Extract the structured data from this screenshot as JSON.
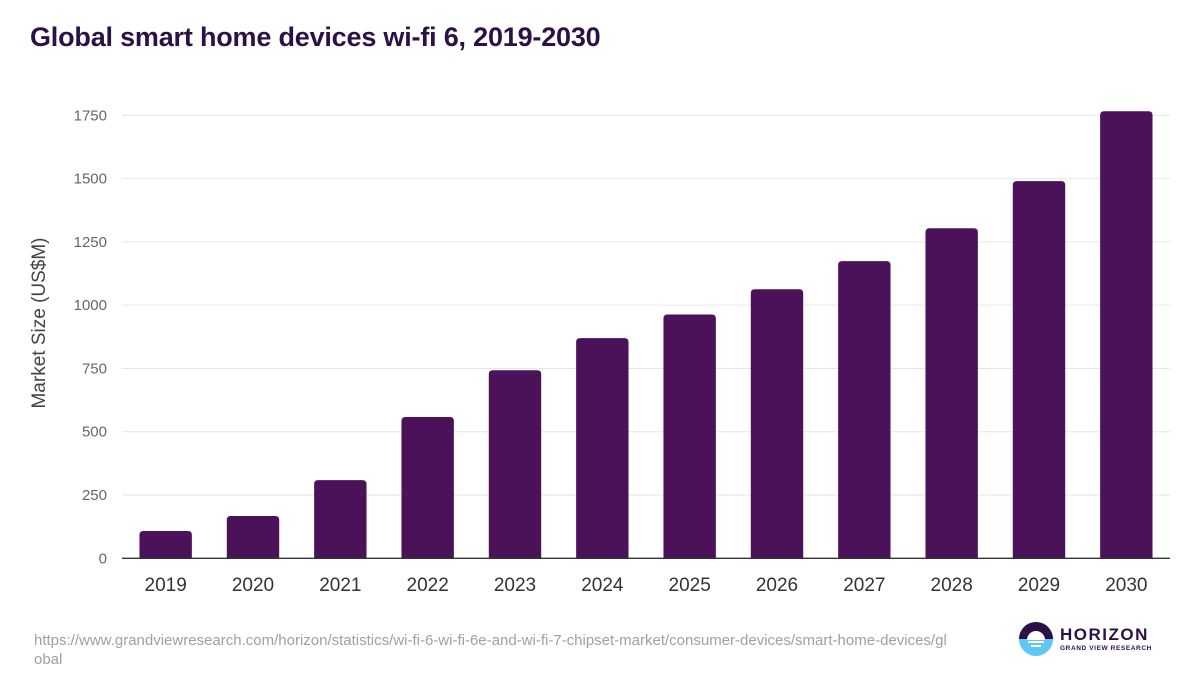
{
  "header": {
    "title": "Global smart home devices wi-fi 6, 2019-2030"
  },
  "colors": {
    "bar": "#4b1259",
    "title": "#2d1045",
    "grid": "#e6e6e6",
    "axis": "#333333",
    "logo_dark": "#2d1045",
    "logo_light": "#5ec8f2"
  },
  "chart_data": {
    "type": "bar",
    "title": "Global smart home devices wi-fi 6, 2019-2030",
    "xlabel": "",
    "ylabel": "Market Size (US$M)",
    "categories": [
      "2019",
      "2020",
      "2021",
      "2022",
      "2023",
      "2024",
      "2025",
      "2026",
      "2027",
      "2028",
      "2029",
      "2030"
    ],
    "values": [
      108,
      167,
      309,
      558,
      743,
      870,
      963,
      1063,
      1174,
      1304,
      1490,
      1766
    ],
    "ylim": [
      0,
      1750
    ],
    "yticks": [
      0,
      250,
      500,
      750,
      1000,
      1250,
      1500,
      1750
    ],
    "grid": true,
    "legend": "none"
  },
  "footer": {
    "source_url": "https://www.grandviewresearch.com/horizon/statistics/wi-fi-6-wi-fi-6e-and-wi-fi-7-chipset-market/consumer-devices/smart-home-devices/global",
    "logo_name": "HORIZON",
    "logo_subtitle": "GRAND VIEW RESEARCH"
  }
}
